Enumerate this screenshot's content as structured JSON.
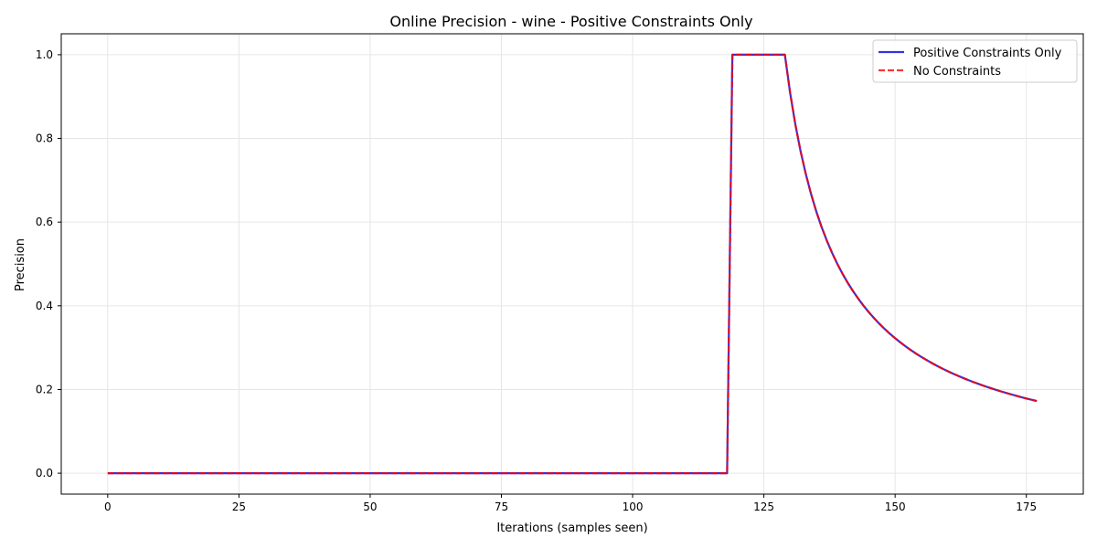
{
  "chart_data": {
    "type": "line",
    "title": "Online Precision - wine - Positive Constraints Only",
    "xlabel": "Iterations (samples seen)",
    "ylabel": "Precision",
    "xlim": [
      -8.85,
      185.85
    ],
    "ylim": [
      -0.05,
      1.05
    ],
    "xticks": [
      0,
      25,
      50,
      75,
      100,
      125,
      150,
      175
    ],
    "xtick_labels": [
      "0",
      "25",
      "50",
      "75",
      "100",
      "125",
      "150",
      "175"
    ],
    "yticks": [
      0.0,
      0.2,
      0.4,
      0.6,
      0.8,
      1.0
    ],
    "ytick_labels": [
      "0.0",
      "0.2",
      "0.4",
      "0.6",
      "0.8",
      "1.0"
    ],
    "grid": true,
    "legend_position": "top-right",
    "series": [
      {
        "name": "Positive Constraints Only",
        "color": "#0000dd",
        "style": "solid",
        "x": [
          0,
          118,
          119,
          120,
          121,
          122,
          123,
          124,
          125,
          126,
          127,
          128,
          129,
          130,
          131,
          132,
          133,
          134,
          135,
          136,
          137,
          138,
          139,
          140,
          141,
          142,
          143,
          144,
          145,
          146,
          147,
          148,
          149,
          150,
          151,
          152,
          153,
          154,
          155,
          156,
          157,
          158,
          159,
          160,
          161,
          162,
          163,
          164,
          165,
          166,
          167,
          168,
          169,
          170,
          171,
          172,
          173,
          174,
          175,
          176,
          177
        ],
        "y": [
          0.0,
          0.0,
          1.0,
          1.0,
          1.0,
          1.0,
          1.0,
          1.0,
          1.0,
          1.0,
          1.0,
          1.0,
          1.0,
          0.9091,
          0.8333,
          0.7692,
          0.7143,
          0.6667,
          0.625,
          0.5882,
          0.5556,
          0.5263,
          0.5,
          0.4762,
          0.4545,
          0.4348,
          0.4167,
          0.4,
          0.3846,
          0.3704,
          0.3571,
          0.3448,
          0.3333,
          0.3226,
          0.3125,
          0.303,
          0.2941,
          0.2857,
          0.2778,
          0.2703,
          0.2632,
          0.2564,
          0.25,
          0.2439,
          0.2381,
          0.2326,
          0.2273,
          0.2222,
          0.2174,
          0.2128,
          0.2083,
          0.2041,
          0.2,
          0.1961,
          0.1923,
          0.1887,
          0.1852,
          0.1818,
          0.1786,
          0.1754,
          0.1724
        ]
      },
      {
        "name": "No Constraints",
        "color": "#ff0000",
        "style": "dashed",
        "x": [
          0,
          118,
          119,
          120,
          121,
          122,
          123,
          124,
          125,
          126,
          127,
          128,
          129,
          130,
          131,
          132,
          133,
          134,
          135,
          136,
          137,
          138,
          139,
          140,
          141,
          142,
          143,
          144,
          145,
          146,
          147,
          148,
          149,
          150,
          151,
          152,
          153,
          154,
          155,
          156,
          157,
          158,
          159,
          160,
          161,
          162,
          163,
          164,
          165,
          166,
          167,
          168,
          169,
          170,
          171,
          172,
          173,
          174,
          175,
          176,
          177
        ],
        "y": [
          0.0,
          0.0,
          1.0,
          1.0,
          1.0,
          1.0,
          1.0,
          1.0,
          1.0,
          1.0,
          1.0,
          1.0,
          1.0,
          0.9091,
          0.8333,
          0.7692,
          0.7143,
          0.6667,
          0.625,
          0.5882,
          0.5556,
          0.5263,
          0.5,
          0.4762,
          0.4545,
          0.4348,
          0.4167,
          0.4,
          0.3846,
          0.3704,
          0.3571,
          0.3448,
          0.3333,
          0.3226,
          0.3125,
          0.303,
          0.2941,
          0.2857,
          0.2778,
          0.2703,
          0.2632,
          0.2564,
          0.25,
          0.2439,
          0.2381,
          0.2326,
          0.2273,
          0.2222,
          0.2174,
          0.2128,
          0.2083,
          0.2041,
          0.2,
          0.1961,
          0.1923,
          0.1887,
          0.1852,
          0.1818,
          0.1786,
          0.1754,
          0.1724
        ]
      }
    ]
  }
}
